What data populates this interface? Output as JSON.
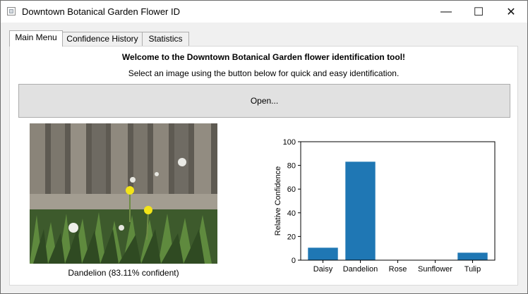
{
  "window": {
    "title": "Downtown Botanical Garden Flower ID",
    "minimize_glyph": "—",
    "maximize_glyph": "☐",
    "close_glyph": "✕"
  },
  "tabs": [
    {
      "label": "Main Menu",
      "active": true
    },
    {
      "label": "Confidence History",
      "active": false
    },
    {
      "label": "Statistics",
      "active": false
    }
  ],
  "main": {
    "welcome": "Welcome to the Downtown Botanical Garden flower identification tool!",
    "instructions": "Select an image using the button below for quick and easy identification.",
    "open_button": "Open...",
    "image_caption": "Dandelion (83.11% confident)"
  },
  "chart_data": {
    "type": "bar",
    "categories": [
      "Daisy",
      "Dandelion",
      "Rose",
      "Sunflower",
      "Tulip"
    ],
    "values": [
      10.5,
      83.11,
      0.1,
      0.1,
      6.3
    ],
    "ylabel": "Relative Confidence",
    "xlabel": "",
    "title": "",
    "ylim": [
      0,
      100
    ],
    "yticks": [
      0,
      20,
      40,
      60,
      80,
      100
    ],
    "bar_color": "#1f77b4"
  }
}
